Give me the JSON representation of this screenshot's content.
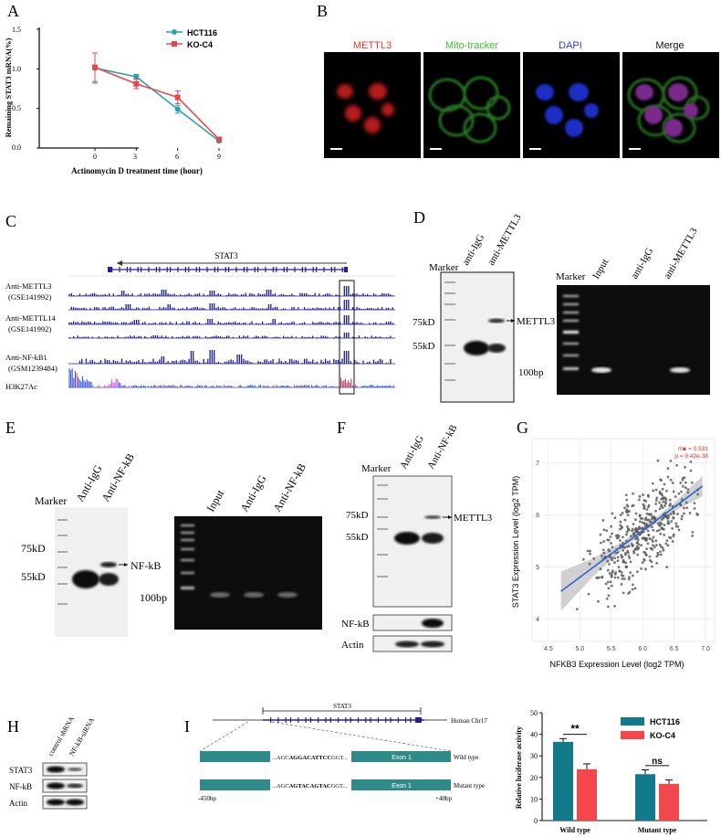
{
  "panels": {
    "A": "A",
    "B": "B",
    "C": "C",
    "D": "D",
    "E": "E",
    "F": "F",
    "G": "G",
    "H": "H",
    "I": "I"
  },
  "panelA": {
    "legend": [
      "HCT116",
      "KO-C4"
    ],
    "colors": {
      "HCT116": "#2aa2ad",
      "KO-C4": "#e8484d"
    },
    "yticks": [
      "0.0",
      "0.5",
      "1.0",
      "1.5"
    ],
    "xticks": [
      "0",
      "3",
      "6",
      "9"
    ]
  },
  "chart_data": [
    {
      "type": "line",
      "xlabel": "Actinomycin D treatment time (hour)",
      "ylabel": "Remaining STAT3 mRNA(%)",
      "x": [
        0,
        3,
        6,
        9
      ],
      "xlim": [
        -1.5,
        10
      ],
      "ylim": [
        0,
        1.5
      ],
      "series": [
        {
          "name": "HCT116",
          "values": [
            1.01,
            0.9,
            0.49,
            0.09
          ],
          "err": [
            0.19,
            0.03,
            0.05,
            0.02
          ]
        },
        {
          "name": "KO-C4",
          "values": [
            1.02,
            0.81,
            0.64,
            0.11
          ],
          "err": [
            0.18,
            0.06,
            0.08,
            0.02
          ]
        }
      ]
    },
    {
      "type": "scatter",
      "xlabel": "NFKB3 Expression Level (log2 TPM)",
      "ylabel": "STAT3 Expression Level (log2 TPM)",
      "xticks": [
        "4.5",
        "5.0",
        "5.5",
        "6.0",
        "6.5",
        "7.0"
      ],
      "yticks": [
        "4",
        "5",
        "6",
        "7"
      ],
      "xlim": [
        4.4,
        7.1
      ],
      "ylim": [
        3.6,
        7.4
      ],
      "annotation": [
        "rho = 0.531",
        "p = 9.42e-38"
      ],
      "fit": {
        "slope": 0.9,
        "intercept": 0.3
      }
    },
    {
      "type": "bar",
      "ylabel": "Relative luciferase activity",
      "categories": [
        "Wild type",
        "Mutant type"
      ],
      "ylim": [
        0,
        50
      ],
      "yticks": [
        "0",
        "10",
        "20",
        "30",
        "40",
        "50"
      ],
      "series": [
        {
          "name": "HCT116",
          "values": [
            36.5,
            21.5
          ],
          "err": [
            1.5,
            2
          ]
        },
        {
          "name": "KO-C4",
          "values": [
            23.8,
            17
          ],
          "err": [
            2.5,
            1.8
          ]
        }
      ],
      "significance": [
        "**",
        "ns"
      ]
    }
  ],
  "panelB": {
    "labels": [
      "METTL3",
      "Mito-tracker",
      "DAPI",
      "Merge"
    ]
  },
  "panelC": {
    "gene": "STAT3",
    "tracks": [
      "Anti-METTL3",
      "(GSE141992)",
      "Anti-METTL14",
      "(GSE141992)",
      "Anti-NF-kB1",
      "(GSM1239484)",
      "H3K27Ac"
    ]
  },
  "panelD": {
    "wb_lanes": [
      "Marker",
      "anti-IgG",
      "anti-METTL3"
    ],
    "wb_markers": [
      "75kD",
      "55kD"
    ],
    "wb_band": "METTL3",
    "gel_lanes": [
      "Marker",
      "Input",
      "anti-IgG",
      "anti-METTL3"
    ],
    "gel_band": "100bp"
  },
  "panelE": {
    "wb_lanes": [
      "Marker",
      "Anti-IgG",
      "Anti-NF-kB"
    ],
    "wb_markers": [
      "75kD",
      "55kD"
    ],
    "wb_band": "NF-kB",
    "gel_lanes": [
      "Input",
      "Anti-IgG",
      "Anti-NF-kB"
    ],
    "gel_band": "100bp"
  },
  "panelF": {
    "lanes": [
      "Marker",
      "Anti-IgG",
      "Anti-NF-kB"
    ],
    "markers": [
      "75kD",
      "55kD"
    ],
    "band": "METTL3",
    "blots": [
      "NF-kB",
      "Actin"
    ]
  },
  "panelH": {
    "lanes": [
      "control shRNA",
      "NF-kB-siRNA"
    ],
    "rows": [
      "STAT3",
      "NF-kB",
      "Actin"
    ]
  },
  "panelI": {
    "gene": "STAT3",
    "chrom": "Human Chr17",
    "exon": "Exon 1",
    "wt_seq": {
      "pre": "...AGC",
      "mid": "AGGACATTCC",
      "post": "GGT..."
    },
    "mut_seq": {
      "pre": "...AGC",
      "mid": "AGTACAGTAC",
      "post": "GGT..."
    },
    "wt_label": "Wild type",
    "mut_label": "Mutant type",
    "pos_left": "-450bp",
    "pos_right": "+40bp"
  }
}
